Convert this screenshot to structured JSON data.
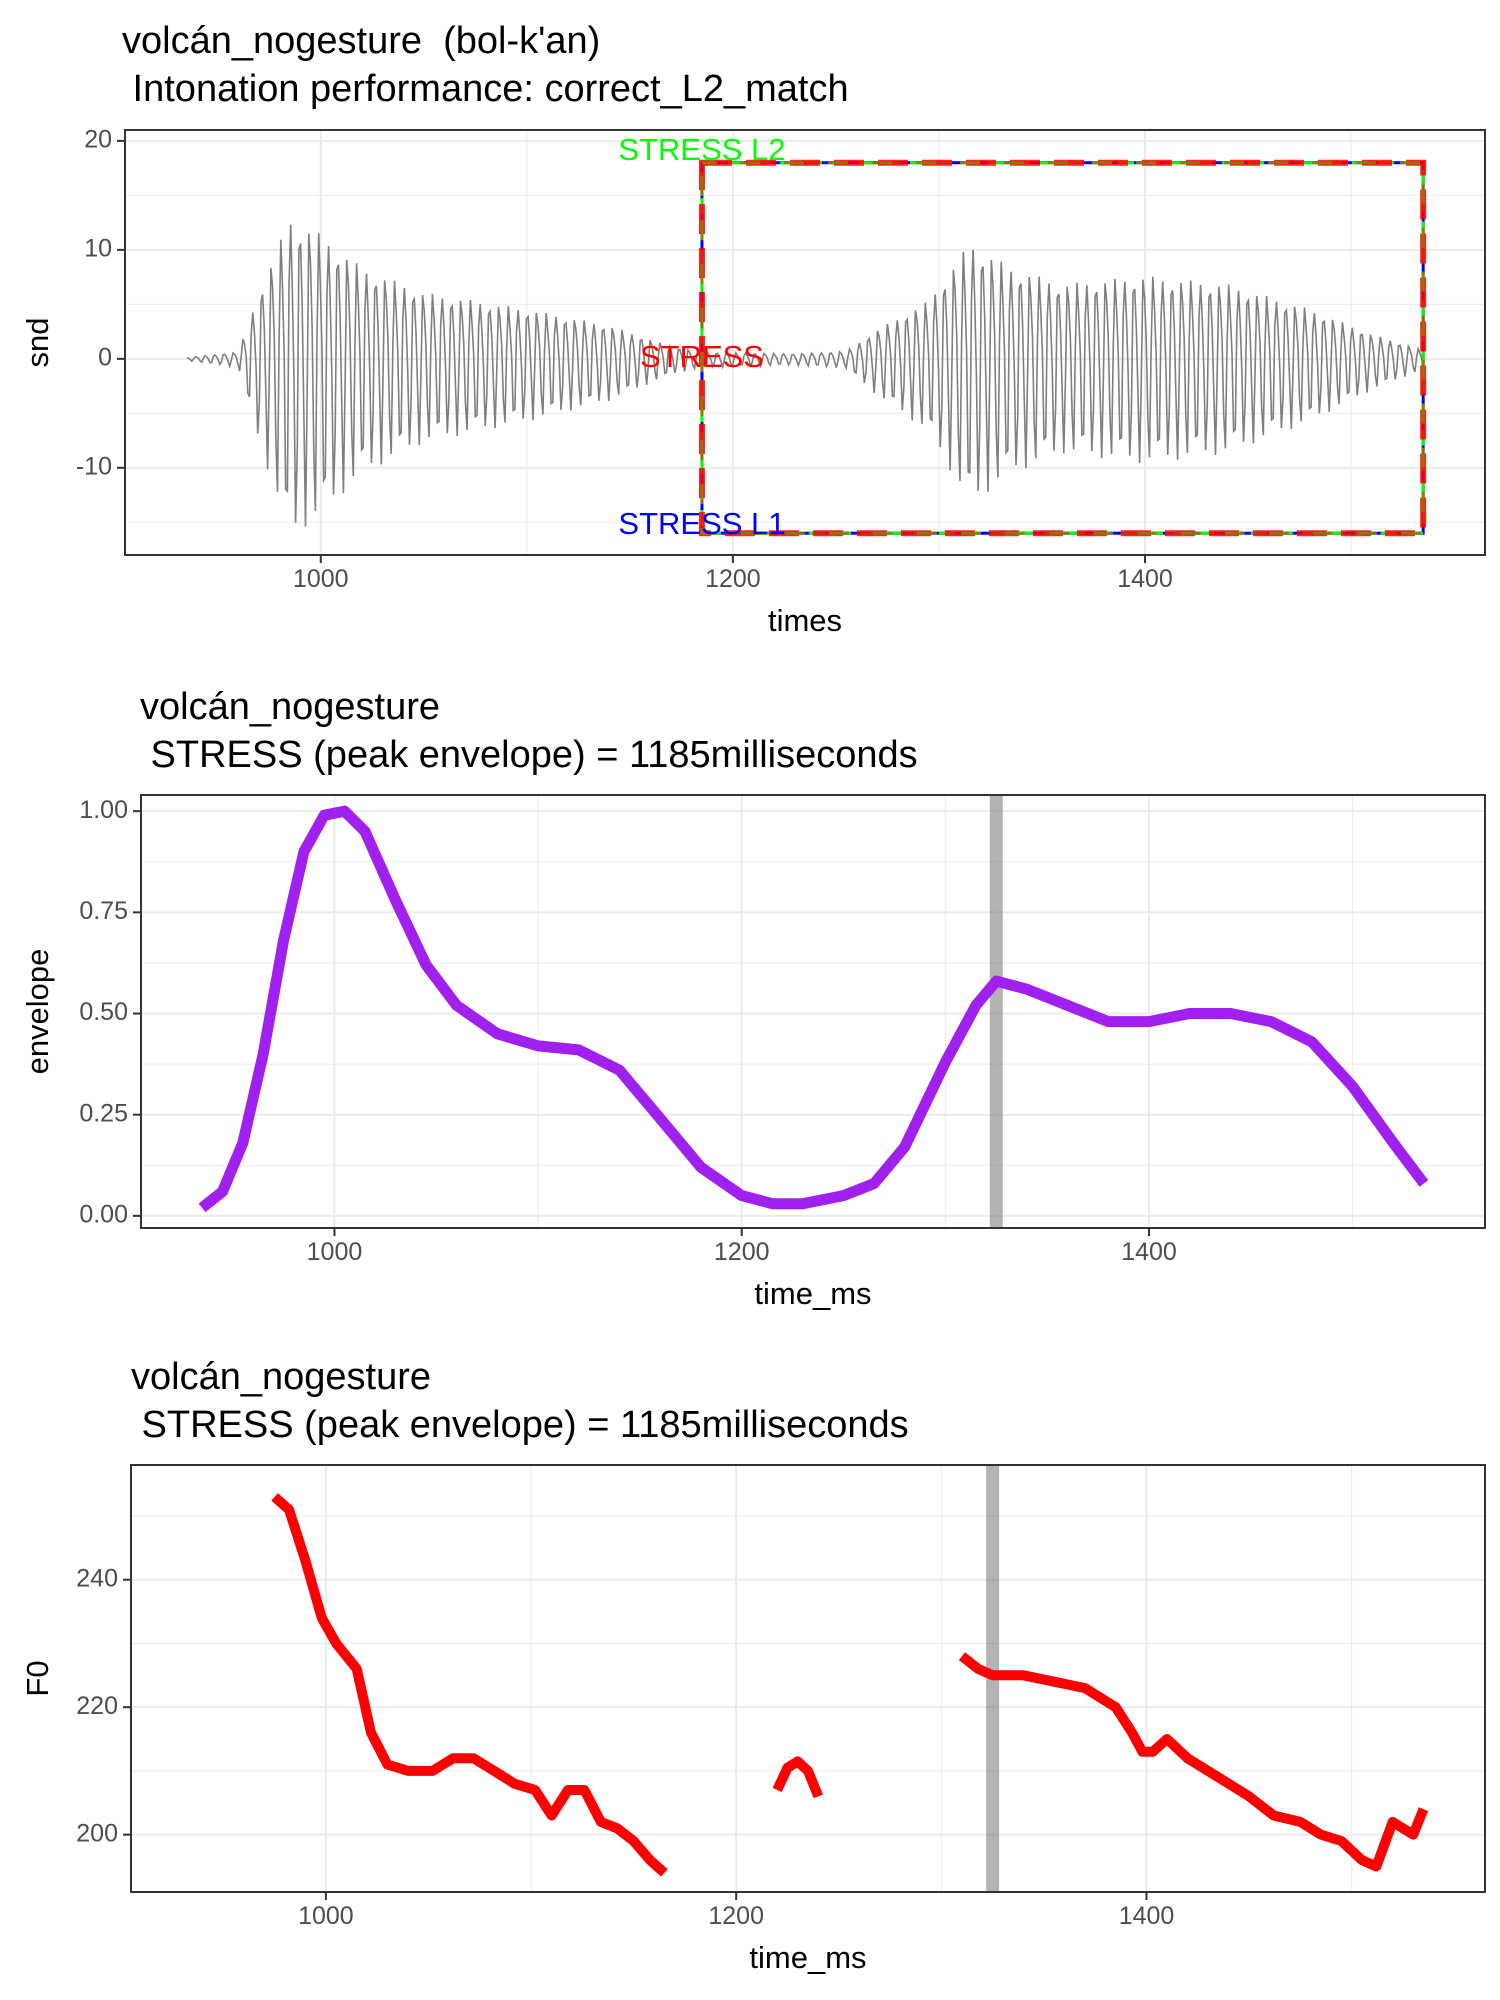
{
  "chart_data": [
    {
      "type": "line",
      "title_lines": [
        "volcán_nogesture  (bol-k'an)",
        " Intonation performance: correct_L2_match"
      ],
      "xlabel": "times",
      "ylabel": "snd",
      "xlim": [
        905,
        1565
      ],
      "ylim": [
        -18,
        21
      ],
      "x_ticks": [
        1000,
        1200,
        1400
      ],
      "y_ticks": [
        -10,
        0,
        10,
        20
      ],
      "grid": true,
      "series": [
        {
          "color": "#7f7f7f",
          "signal": "waveform",
          "x_range": [
            935,
            1535
          ],
          "amplitude_envelope": [
            [
              935,
              0.15
            ],
            [
              960,
              0.8
            ],
            [
              970,
              8
            ],
            [
              985,
              17
            ],
            [
              1000,
              15
            ],
            [
              1020,
              11
            ],
            [
              1050,
              8
            ],
            [
              1100,
              6
            ],
            [
              1140,
              4
            ],
            [
              1170,
              1.5
            ],
            [
              1185,
              0.8
            ],
            [
              1230,
              0.6
            ],
            [
              1255,
              0.9
            ],
            [
              1270,
              3.5
            ],
            [
              1295,
              7
            ],
            [
              1315,
              14
            ],
            [
              1335,
              11
            ],
            [
              1360,
              9
            ],
            [
              1400,
              10
            ],
            [
              1440,
              9
            ],
            [
              1480,
              6
            ],
            [
              1510,
              3
            ],
            [
              1535,
              1
            ]
          ]
        }
      ],
      "annotations": [
        {
          "text": "STRESS L2",
          "x": 1185,
          "y": 19,
          "color": "#00ff00"
        },
        {
          "text": "STRESS",
          "x": 1185,
          "y": 0,
          "color": "#ff0000"
        },
        {
          "text": "STRESS L1",
          "x": 1185,
          "y": -15.3,
          "color": "#0000ff"
        }
      ],
      "highlight_box": {
        "x_range": [
          1185,
          1535
        ],
        "y_range": [
          -16,
          18
        ],
        "edge_colors": [
          "#0000ff",
          "#00ff00",
          "#ff0000",
          "#8b7d00"
        ]
      }
    },
    {
      "type": "line",
      "title_lines": [
        "volcán_nogesture",
        " STRESS (peak envelope) = 1185milliseconds"
      ],
      "xlabel": "time_ms",
      "ylabel": "envelope",
      "xlim": [
        905,
        1565
      ],
      "ylim": [
        -0.03,
        1.04
      ],
      "x_ticks": [
        1000,
        1200,
        1400
      ],
      "y_ticks": [
        0.0,
        0.25,
        0.5,
        0.75,
        1.0
      ],
      "y_tick_labels": [
        "0.00",
        "0.25",
        "0.50",
        "0.75",
        "1.00"
      ],
      "grid": true,
      "vline": {
        "x": 1325,
        "color": "#808080"
      },
      "series": [
        {
          "color": "#a020f0",
          "x": [
            935,
            945,
            955,
            965,
            975,
            985,
            995,
            1005,
            1015,
            1030,
            1045,
            1060,
            1080,
            1100,
            1120,
            1140,
            1160,
            1180,
            1200,
            1215,
            1230,
            1250,
            1265,
            1280,
            1300,
            1315,
            1325,
            1340,
            1360,
            1380,
            1400,
            1420,
            1440,
            1460,
            1480,
            1500,
            1520,
            1535
          ],
          "y": [
            0.02,
            0.06,
            0.18,
            0.4,
            0.68,
            0.9,
            0.99,
            1.0,
            0.95,
            0.78,
            0.62,
            0.52,
            0.45,
            0.42,
            0.41,
            0.36,
            0.24,
            0.12,
            0.05,
            0.03,
            0.03,
            0.05,
            0.08,
            0.17,
            0.38,
            0.52,
            0.58,
            0.56,
            0.52,
            0.48,
            0.48,
            0.5,
            0.5,
            0.48,
            0.43,
            0.32,
            0.18,
            0.08
          ]
        }
      ]
    },
    {
      "type": "line",
      "title_lines": [
        "volcán_nogesture",
        " STRESS (peak envelope) = 1185milliseconds"
      ],
      "xlabel": "time_ms",
      "ylabel": "F0",
      "xlim": [
        905,
        1565
      ],
      "ylim": [
        191,
        258
      ],
      "x_ticks": [
        1000,
        1200,
        1400
      ],
      "y_ticks": [
        200,
        220,
        240
      ],
      "grid": true,
      "vline": {
        "x": 1325,
        "color": "#808080"
      },
      "series": [
        {
          "color": "#ff0000",
          "x": [
            975,
            982,
            990,
            998,
            1005,
            1015,
            1022,
            1030,
            1040,
            1052,
            1062,
            1072,
            1082,
            1092,
            1102,
            1110,
            1118,
            1126,
            1134,
            1142,
            1150,
            1158,
            1165
          ],
          "y": [
            253,
            251,
            243,
            234,
            230,
            226,
            216,
            211,
            210,
            210,
            212,
            212,
            210,
            208,
            207,
            203,
            207,
            207,
            202,
            201,
            199,
            196,
            194
          ]
        },
        {
          "color": "#ff0000",
          "x": [
            1220,
            1225,
            1230,
            1235,
            1240
          ],
          "y": [
            207,
            210.5,
            211.5,
            210,
            206
          ]
        },
        {
          "color": "#ff0000",
          "x": [
            1310,
            1318,
            1325,
            1340,
            1355,
            1370,
            1385,
            1393,
            1398,
            1403,
            1410,
            1420,
            1435,
            1450,
            1462,
            1475,
            1485,
            1495,
            1505,
            1512,
            1520,
            1525,
            1530,
            1535
          ],
          "y": [
            228,
            226,
            225,
            225,
            224,
            223,
            220,
            216,
            213,
            213,
            215,
            212,
            209,
            206,
            203,
            202,
            200,
            199,
            196,
            195,
            202,
            201,
            200,
            204
          ]
        }
      ]
    }
  ]
}
